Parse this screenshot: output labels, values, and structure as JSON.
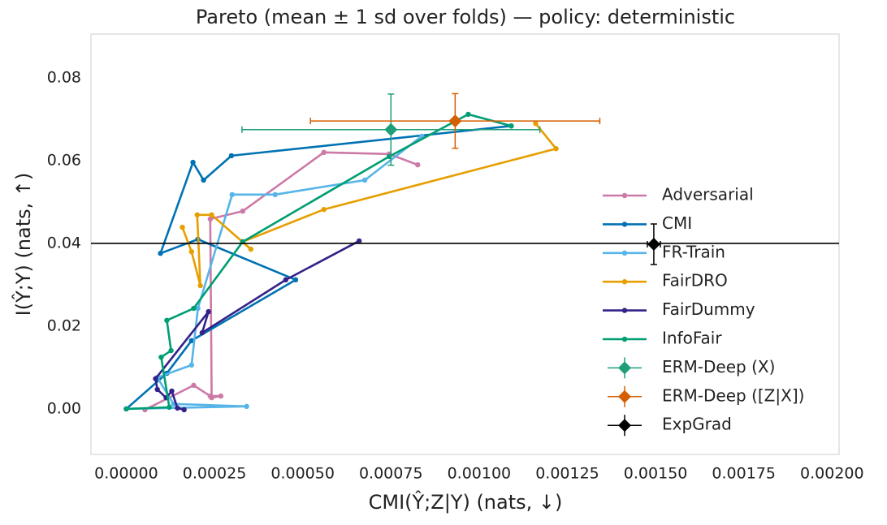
{
  "chart_data": {
    "type": "line",
    "title": "Pareto (mean ± 1 sd over folds) — policy: deterministic",
    "x_label": "CMI(Ŷ;Z|Y) (nats, ↓)",
    "y_label": "I(Ŷ;Y) (nats, ↑)",
    "xlim": [
      -0.0001,
      0.00202
    ],
    "ylim": [
      -0.011,
      0.0906
    ],
    "xticks": [
      {
        "value": 0,
        "label": "0.00000"
      },
      {
        "value": 0.00025,
        "label": "0.00025"
      },
      {
        "value": 0.0005,
        "label": "0.00050"
      },
      {
        "value": 0.00075,
        "label": "0.00075"
      },
      {
        "value": 0.001,
        "label": "0.00100"
      },
      {
        "value": 0.00125,
        "label": "0.00125"
      },
      {
        "value": 0.0015,
        "label": "0.00150"
      },
      {
        "value": 0.00175,
        "label": "0.00175"
      },
      {
        "value": 0.002,
        "label": "0.00200"
      }
    ],
    "yticks": [
      {
        "value": 0,
        "label": "0.00"
      },
      {
        "value": 0.02,
        "label": "0.02"
      },
      {
        "value": 0.04,
        "label": "0.04"
      },
      {
        "value": 0.06,
        "label": "0.06"
      },
      {
        "value": 0.08,
        "label": "0.08"
      }
    ],
    "hline": 0.04,
    "legend": "center right",
    "series": [
      {
        "name": "Adversarial",
        "color": "#cc79a7",
        "x": [
          5.3e-05,
          0.000191,
          0.000238,
          0.000268,
          0.000242,
          0.000238,
          0.00033,
          0.00056,
          0.000745,
          0.000826
        ],
        "y": [
          -0.0002,
          0.0057,
          0.0031,
          0.0031,
          0.0027,
          0.0459,
          0.0478,
          0.062,
          0.0616,
          0.059
        ]
      },
      {
        "name": "CMI",
        "color": "#0072b2",
        "x": [
          0,
          0.000115,
          0.000185,
          0.00048,
          0.000203,
          9.7e-05,
          0.000189,
          0.000219,
          0.000298,
          0.001091
        ],
        "y": [
          0,
          0.0086,
          0.0165,
          0.0312,
          0.041,
          0.0376,
          0.0596,
          0.0553,
          0.0612,
          0.0684
        ]
      },
      {
        "name": "FR-Train",
        "color": "#56b4e9",
        "x": [
          0,
          0.000341,
          0.000134,
          8.8e-05,
          0.000185,
          0.000203,
          0.0003,
          0.000422,
          0.000676,
          0.000837
        ],
        "y": [
          0,
          0.0006,
          0.0012,
          0.0076,
          0.0106,
          0.0243,
          0.0518,
          0.0518,
          0.0553,
          0.0659
        ]
      },
      {
        "name": "FairDRO",
        "color": "#e69f00",
        "x": [
          0.000159,
          0.000185,
          0.00021,
          0.000201,
          0.000242,
          0.000353,
          0.00033,
          0.00056,
          0.001218,
          0.00116
        ],
        "y": [
          0.0439,
          0.038,
          0.0298,
          0.0469,
          0.0469,
          0.0386,
          0.0404,
          0.0482,
          0.0629,
          0.069
        ]
      },
      {
        "name": "FairDummy",
        "color": "#332288",
        "x": [
          0.000164,
          0.000145,
          0.000129,
          0.000113,
          8.8e-05,
          8.3e-05,
          0.000233,
          0.000215,
          0.000452,
          0.00066
        ],
        "y": [
          -0.0002,
          0.0002,
          0.0043,
          0.0027,
          0.0047,
          0.0073,
          0.0235,
          0.0184,
          0.0312,
          0.0406
        ]
      },
      {
        "name": "InfoFair",
        "color": "#009e73",
        "x": [
          0,
          0.000122,
          9.9e-05,
          0.000127,
          0.000115,
          0.000191,
          0.00033,
          0.000745,
          0.000969,
          0.001091
        ],
        "y": [
          0,
          0.0004,
          0.0125,
          0.0141,
          0.0214,
          0.0243,
          0.0404,
          0.061,
          0.0712,
          0.0684
        ]
      }
    ],
    "points": [
      {
        "name": "ERM-Deep (X)",
        "color": "#1f9e7a",
        "x": 0.00075,
        "y": 0.0675,
        "xerr": 0.000422,
        "yerr": 0.0086
      },
      {
        "name": "ERM-Deep ([Z|X])",
        "color": "#d55e00",
        "x": 0.000932,
        "y": 0.0696,
        "xerr": 0.00041,
        "yerr": 0.0066
      },
      {
        "name": "ExpGrad",
        "color": "#000000",
        "x": 0.001495,
        "y": 0.0398,
        "xerr": 1.85e-05,
        "yerr": 0.0049
      }
    ]
  }
}
